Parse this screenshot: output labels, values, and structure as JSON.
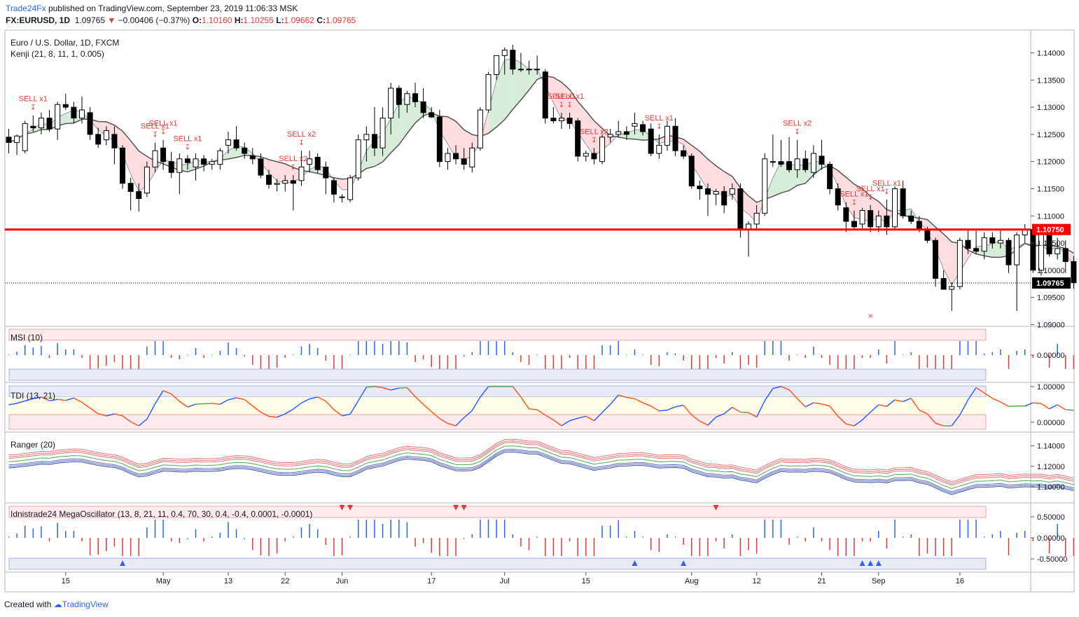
{
  "header": {
    "brand": "Trade24Fx",
    "published": "published on TradingView.com, September 23, 2019 11:06:33 MSK",
    "symbol": "FX:EURUSD, 1D",
    "last": "1.09765",
    "change": "−0.00406 (−0.37%)",
    "o_label": "O:",
    "o": "1.10160",
    "h_label": "H:",
    "h": "1.10255",
    "l_label": "L:",
    "l": "1.09662",
    "c_label": "C:",
    "c": "1.09765"
  },
  "footer": {
    "created_with": "Created with",
    "tv": "TradingView"
  },
  "colors": {
    "up": "#ffffff",
    "down": "#000000",
    "red_line": "#ff0000",
    "sell": "#e53935",
    "buy": "#2962ff",
    "green": "#4caf50"
  },
  "chart_data": [
    {
      "type": "candlestick",
      "title": "Euro / U.S. Dollar, 1D, FXCM",
      "indicator": "Kenji (21, 8, 11, 1, 0.005)",
      "x_ticks": [
        "15",
        "May",
        "13",
        "22",
        "Jun",
        "17",
        "Jul",
        "15",
        "Aug",
        "12",
        "21",
        "Sep",
        "16"
      ],
      "y_ticks": [
        "1.14000",
        "1.13500",
        "1.13000",
        "1.12500",
        "1.12000",
        "1.11500",
        "1.11000",
        "1.10500",
        "1.10000",
        "1.09500",
        "1.09000"
      ],
      "ylim": [
        1.09,
        1.143
      ],
      "horizontal_line": {
        "value": 1.1075,
        "label": "1.10750"
      },
      "last_price": {
        "value": 1.09765,
        "label": "1.09765"
      },
      "signals": [
        {
          "text": "SELL x1",
          "i": 3
        },
        {
          "text": "SELL x1",
          "i": 18
        },
        {
          "text": "SELL x1",
          "i": 19
        },
        {
          "text": "SELL x1",
          "i": 22
        },
        {
          "text": "SELL x2",
          "i": 35
        },
        {
          "text": "SELL x2",
          "i": 36
        },
        {
          "text": "SELL x1",
          "i": 68
        },
        {
          "text": "SELL x1",
          "i": 69
        },
        {
          "text": "SELL x2",
          "i": 72
        },
        {
          "text": "SELL x1",
          "i": 80
        },
        {
          "text": "SELL x2",
          "i": 97
        },
        {
          "text": "SELL x1",
          "i": 104
        },
        {
          "text": "SELL x1",
          "i": 106
        },
        {
          "text": "SELL x1",
          "i": 108
        }
      ],
      "ohlc": [
        [
          1.1245,
          1.126,
          1.1215,
          1.1235
        ],
        [
          1.1235,
          1.125,
          1.1212,
          1.1247
        ],
        [
          1.122,
          1.1275,
          1.1215,
          1.127
        ],
        [
          1.1265,
          1.1285,
          1.1255,
          1.1262
        ],
        [
          1.1262,
          1.129,
          1.125,
          1.128
        ],
        [
          1.128,
          1.1295,
          1.1255,
          1.126
        ],
        [
          1.126,
          1.131,
          1.124,
          1.1305
        ],
        [
          1.1305,
          1.1325,
          1.1295,
          1.13
        ],
        [
          1.13,
          1.131,
          1.127,
          1.128
        ],
        [
          1.128,
          1.132,
          1.127,
          1.1295
        ],
        [
          1.129,
          1.13,
          1.124,
          1.125
        ],
        [
          1.125,
          1.1262,
          1.1225,
          1.1232
        ],
        [
          1.124,
          1.1265,
          1.123,
          1.1257
        ],
        [
          1.125,
          1.1265,
          1.1195,
          1.1225
        ],
        [
          1.1225,
          1.123,
          1.115,
          1.116
        ],
        [
          1.116,
          1.117,
          1.111,
          1.1145
        ],
        [
          1.1145,
          1.116,
          1.1108,
          1.1132
        ],
        [
          1.1142,
          1.12,
          1.1135,
          1.119
        ],
        [
          1.119,
          1.1235,
          1.118,
          1.122
        ],
        [
          1.1225,
          1.124,
          1.1185,
          1.12
        ],
        [
          1.12,
          1.1218,
          1.117,
          1.118
        ],
        [
          1.118,
          1.1215,
          1.114,
          1.1205
        ],
        [
          1.1205,
          1.1212,
          1.1185,
          1.1198
        ],
        [
          1.119,
          1.1215,
          1.1165,
          1.1205
        ],
        [
          1.1205,
          1.1212,
          1.1182,
          1.1195
        ],
        [
          1.1195,
          1.1205,
          1.1185,
          1.12
        ],
        [
          1.1195,
          1.1225,
          1.1185,
          1.122
        ],
        [
          1.123,
          1.1255,
          1.1215,
          1.124
        ],
        [
          1.124,
          1.1265,
          1.122,
          1.1225
        ],
        [
          1.1225,
          1.1235,
          1.1205,
          1.1215
        ],
        [
          1.121,
          1.1225,
          1.1195,
          1.1205
        ],
        [
          1.1205,
          1.1215,
          1.117,
          1.1175
        ],
        [
          1.1175,
          1.1185,
          1.115,
          1.1158
        ],
        [
          1.1158,
          1.1168,
          1.1145,
          1.116
        ],
        [
          1.116,
          1.1175,
          1.1145,
          1.1165
        ],
        [
          1.1165,
          1.1175,
          1.111,
          1.116
        ],
        [
          1.1165,
          1.122,
          1.1155,
          1.119
        ],
        [
          1.1195,
          1.122,
          1.118,
          1.1205
        ],
        [
          1.1208,
          1.1215,
          1.1178,
          1.1185
        ],
        [
          1.119,
          1.12,
          1.114,
          1.117
        ],
        [
          1.1165,
          1.117,
          1.1125,
          1.114
        ],
        [
          1.1135,
          1.114,
          1.1125,
          1.1135
        ],
        [
          1.113,
          1.1175,
          1.1125,
          1.117
        ],
        [
          1.117,
          1.125,
          1.1165,
          1.124
        ],
        [
          1.124,
          1.1265,
          1.12,
          1.125
        ],
        [
          1.125,
          1.13,
          1.121,
          1.1225
        ],
        [
          1.1225,
          1.13,
          1.121,
          1.128
        ],
        [
          1.128,
          1.1345,
          1.125,
          1.1335
        ],
        [
          1.1335,
          1.134,
          1.128,
          1.1305
        ],
        [
          1.1305,
          1.133,
          1.129,
          1.1325
        ],
        [
          1.1325,
          1.1345,
          1.13,
          1.131
        ],
        [
          1.131,
          1.1335,
          1.128,
          1.129
        ],
        [
          1.129,
          1.13,
          1.128,
          1.1282
        ],
        [
          1.1282,
          1.1295,
          1.119,
          1.12
        ],
        [
          1.12,
          1.1225,
          1.1185,
          1.1215
        ],
        [
          1.1215,
          1.123,
          1.1195,
          1.1205
        ],
        [
          1.1205,
          1.1225,
          1.1185,
          1.1195
        ],
        [
          1.119,
          1.1235,
          1.118,
          1.1225
        ],
        [
          1.1225,
          1.13,
          1.122,
          1.1295
        ],
        [
          1.1295,
          1.1365,
          1.129,
          1.136
        ],
        [
          1.136,
          1.1395,
          1.135,
          1.1395
        ],
        [
          1.1395,
          1.141,
          1.136,
          1.1405
        ],
        [
          1.1405,
          1.1415,
          1.136,
          1.137
        ],
        [
          1.137,
          1.14,
          1.1365,
          1.137
        ],
        [
          1.137,
          1.1385,
          1.136,
          1.137
        ],
        [
          1.137,
          1.1395,
          1.136,
          1.137
        ],
        [
          1.1365,
          1.137,
          1.127,
          1.128
        ],
        [
          1.128,
          1.13,
          1.127,
          1.1275
        ],
        [
          1.1275,
          1.129,
          1.126,
          1.128
        ],
        [
          1.128,
          1.129,
          1.126,
          1.127
        ],
        [
          1.1275,
          1.128,
          1.12,
          1.121
        ],
        [
          1.121,
          1.122,
          1.12,
          1.1215
        ],
        [
          1.1215,
          1.1225,
          1.1195,
          1.1205
        ],
        [
          1.12,
          1.125,
          1.1195,
          1.1245
        ],
        [
          1.1245,
          1.126,
          1.1235,
          1.125
        ],
        [
          1.125,
          1.1275,
          1.1245,
          1.1255
        ],
        [
          1.1255,
          1.1265,
          1.124,
          1.125
        ],
        [
          1.1265,
          1.129,
          1.125,
          1.127
        ],
        [
          1.1268,
          1.1275,
          1.1248,
          1.1255
        ],
        [
          1.126,
          1.127,
          1.121,
          1.1215
        ],
        [
          1.1215,
          1.125,
          1.1205,
          1.123
        ],
        [
          1.123,
          1.1275,
          1.122,
          1.1265
        ],
        [
          1.1265,
          1.128,
          1.121,
          1.122
        ],
        [
          1.122,
          1.123,
          1.1205,
          1.121
        ],
        [
          1.121,
          1.1215,
          1.115,
          1.1155
        ],
        [
          1.1155,
          1.1165,
          1.113,
          1.115
        ],
        [
          1.115,
          1.116,
          1.11,
          1.114
        ],
        [
          1.114,
          1.115,
          1.112,
          1.1145
        ],
        [
          1.1145,
          1.1155,
          1.1105,
          1.112
        ],
        [
          1.114,
          1.116,
          1.113,
          1.115
        ],
        [
          1.115,
          1.116,
          1.106,
          1.1075
        ],
        [
          1.1075,
          1.109,
          1.1025,
          1.1085
        ],
        [
          1.1085,
          1.112,
          1.1075,
          1.1105
        ],
        [
          1.1105,
          1.1215,
          1.11,
          1.1205
        ],
        [
          1.12,
          1.125,
          1.119,
          1.12
        ],
        [
          1.12,
          1.124,
          1.119,
          1.1195
        ],
        [
          1.12,
          1.1245,
          1.118,
          1.1185
        ],
        [
          1.1185,
          1.124,
          1.117,
          1.1205
        ],
        [
          1.1205,
          1.122,
          1.118,
          1.1185
        ],
        [
          1.118,
          1.123,
          1.117,
          1.1215
        ],
        [
          1.121,
          1.124,
          1.1185,
          1.1195
        ],
        [
          1.1195,
          1.12,
          1.114,
          1.115
        ],
        [
          1.115,
          1.116,
          1.111,
          1.112
        ],
        [
          1.1115,
          1.1125,
          1.107,
          1.109
        ],
        [
          1.109,
          1.111,
          1.1075,
          1.108
        ],
        [
          1.1085,
          1.1115,
          1.1075,
          1.111
        ],
        [
          1.111,
          1.112,
          1.107,
          1.108
        ],
        [
          1.108,
          1.111,
          1.107,
          1.11
        ],
        [
          1.11,
          1.113,
          1.1065,
          1.108
        ],
        [
          1.108,
          1.1155,
          1.1075,
          1.115
        ],
        [
          1.115,
          1.1165,
          1.1095,
          1.11
        ],
        [
          1.11,
          1.111,
          1.1085,
          1.109
        ],
        [
          1.109,
          1.11,
          1.107,
          1.1075
        ],
        [
          1.1075,
          1.108,
          1.105,
          1.1055
        ],
        [
          1.1055,
          1.106,
          1.097,
          1.0985
        ],
        [
          1.0985,
          1.1,
          1.0965,
          1.0965
        ],
        [
          1.0965,
          1.0978,
          1.0925,
          1.097
        ],
        [
          1.097,
          1.106,
          1.0965,
          1.1055
        ],
        [
          1.1055,
          1.1075,
          1.103,
          1.104
        ],
        [
          1.104,
          1.1075,
          1.103,
          1.1035
        ],
        [
          1.1035,
          1.107,
          1.102,
          1.106
        ],
        [
          1.106,
          1.107,
          1.104,
          1.105
        ],
        [
          1.105,
          1.1075,
          1.104,
          1.1055
        ],
        [
          1.1055,
          1.106,
          1.0995,
          1.101
        ],
        [
          1.101,
          1.107,
          1.0925,
          1.1065
        ],
        [
          1.1065,
          1.1085,
          1.105,
          1.1075
        ],
        [
          1.1075,
          1.108,
          1.0995,
          1.1
        ],
        [
          1.1,
          1.108,
          1.099,
          1.107
        ],
        [
          1.107,
          1.108,
          1.1025,
          1.103
        ],
        [
          1.103,
          1.106,
          1.102,
          1.104
        ],
        [
          1.104,
          1.1055,
          1.0995,
          1.1016
        ],
        [
          1.1016,
          1.1026,
          1.0966,
          1.0977
        ]
      ]
    },
    {
      "type": "bar",
      "title": "MSI (10)",
      "y_ticks": [
        "0.00000"
      ]
    },
    {
      "type": "line",
      "title": "TDI (13, 21)",
      "y_ticks": [
        "1.00000",
        "0.00000"
      ]
    },
    {
      "type": "line",
      "title": "Ranger (20)",
      "y_ticks": [
        "1.14000",
        "1.12000",
        "1.10000"
      ]
    },
    {
      "type": "bar",
      "title": "Idnistrade24 MegaOscillator (13, 8, 21, 11, 0.4, 70, 30, 0.4, -0.4, 0.0001, -0.0001)",
      "y_ticks": [
        "0.50000",
        "0.00000",
        "-0.50000"
      ]
    }
  ]
}
